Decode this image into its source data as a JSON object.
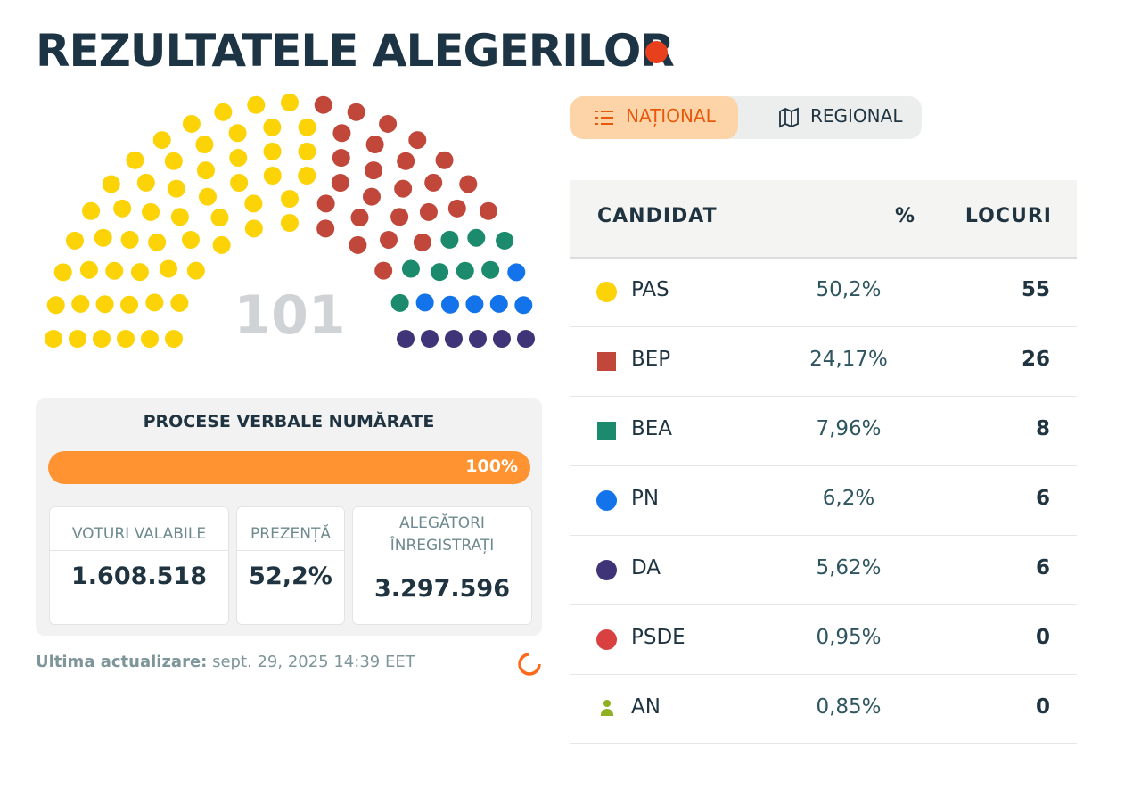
{
  "header": {
    "title": "REZULTATELE ALEGERILOR"
  },
  "hemicycle": {
    "total_seats": 101
  },
  "tabs": [
    {
      "label": "NAȚIONAL",
      "active": true
    },
    {
      "label": "REGIONAL",
      "active": false
    }
  ],
  "progress": {
    "title": "PROCESE VERBALE NUMĂRATE",
    "value": 100,
    "value_label": "100%"
  },
  "stats": [
    {
      "label": "VOTURI VALABILE",
      "value": "1.608.518"
    },
    {
      "label": "PREZENȚĂ",
      "value": "52,2%"
    },
    {
      "label": "ALEGĂTORI ÎNREGISTRAȚI",
      "value": "3.297.596"
    }
  ],
  "updated": {
    "label": "Ultima actualizare:",
    "value": "sept. 29, 2025 14:39 EET"
  },
  "table": {
    "columns": [
      "CANDIDAT",
      "%",
      "LOCURI"
    ],
    "rows": [
      {
        "name": "PAS",
        "percent": "50,2%",
        "seats": 55,
        "color": "#fcd307",
        "marker": "circle"
      },
      {
        "name": "BEP",
        "percent": "24,17%",
        "seats": 26,
        "color": "#c0473a",
        "marker": "square"
      },
      {
        "name": "BEA",
        "percent": "7,96%",
        "seats": 8,
        "color": "#1c8a6c",
        "marker": "square"
      },
      {
        "name": "PN",
        "percent": "6,2%",
        "seats": 6,
        "color": "#1273eb",
        "marker": "circle"
      },
      {
        "name": "DA",
        "percent": "5,62%",
        "seats": 6,
        "color": "#3f3477",
        "marker": "circle"
      },
      {
        "name": "PSDE",
        "percent": "0,95%",
        "seats": 0,
        "color": "#d94141",
        "marker": "circle"
      },
      {
        "name": "AN",
        "percent": "0,85%",
        "seats": 0,
        "color": "#8fb021",
        "marker": "person"
      }
    ]
  }
}
